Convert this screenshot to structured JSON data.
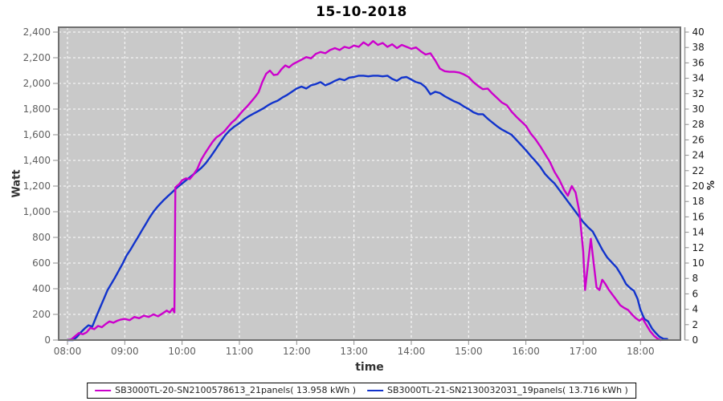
{
  "chart_data": {
    "type": "line",
    "title": "15-10-2018",
    "x_axis": {
      "label": "time",
      "ticks": [
        "08:00",
        "09:00",
        "10:00",
        "11:00",
        "12:00",
        "13:00",
        "14:00",
        "15:00",
        "16:00",
        "17:00",
        "18:00"
      ]
    },
    "y_axis_left": {
      "label": "Watt",
      "range": [
        0,
        2400
      ],
      "ticks": [
        [
          0,
          "0"
        ],
        [
          200,
          "200"
        ],
        [
          400,
          "400"
        ],
        [
          600,
          "600"
        ],
        [
          800,
          "800"
        ],
        [
          1000,
          "1,000"
        ],
        [
          1200,
          "1,200"
        ],
        [
          1400,
          "1,400"
        ],
        [
          1600,
          "1,600"
        ],
        [
          1800,
          "1,800"
        ],
        [
          2000,
          "2,000"
        ],
        [
          2200,
          "2,200"
        ],
        [
          2400,
          "2,400"
        ]
      ]
    },
    "y_axis_right": {
      "label": "%",
      "range": [
        0,
        40
      ],
      "ticks": [
        0,
        2,
        4,
        6,
        8,
        10,
        12,
        14,
        16,
        18,
        20,
        22,
        24,
        26,
        28,
        30,
        32,
        34,
        36,
        38,
        40
      ]
    },
    "plot": {
      "bg": "#C9C9C9",
      "grid_color": "#FFFFFF",
      "grid_style": "dashed",
      "border_color": "#707070"
    },
    "legend_position": "bottom",
    "series": [
      {
        "name": "SB3000TL-20-SN2100578613_21panels( 13.958 kWh )",
        "total_kwh": "13.958",
        "color": "#CC00CC",
        "points": [
          [
            "08:00",
            0
          ],
          [
            "08:04",
            5
          ],
          [
            "08:08",
            30
          ],
          [
            "08:12",
            55
          ],
          [
            "08:16",
            45
          ],
          [
            "08:20",
            60
          ],
          [
            "08:24",
            95
          ],
          [
            "08:28",
            85
          ],
          [
            "08:32",
            110
          ],
          [
            "08:36",
            100
          ],
          [
            "08:40",
            125
          ],
          [
            "08:44",
            145
          ],
          [
            "08:48",
            135
          ],
          [
            "08:52",
            150
          ],
          [
            "08:56",
            160
          ],
          [
            "09:00",
            165
          ],
          [
            "09:05",
            155
          ],
          [
            "09:10",
            180
          ],
          [
            "09:15",
            170
          ],
          [
            "09:20",
            190
          ],
          [
            "09:25",
            180
          ],
          [
            "09:30",
            200
          ],
          [
            "09:35",
            185
          ],
          [
            "09:40",
            210
          ],
          [
            "09:44",
            230
          ],
          [
            "09:47",
            215
          ],
          [
            "09:50",
            245
          ],
          [
            "09:52",
            215
          ],
          [
            "09:53",
            1190
          ],
          [
            "09:57",
            1215
          ],
          [
            "10:00",
            1245
          ],
          [
            "10:04",
            1260
          ],
          [
            "10:08",
            1255
          ],
          [
            "10:12",
            1290
          ],
          [
            "10:16",
            1335
          ],
          [
            "10:20",
            1405
          ],
          [
            "10:24",
            1455
          ],
          [
            "10:28",
            1500
          ],
          [
            "10:32",
            1545
          ],
          [
            "10:36",
            1580
          ],
          [
            "10:40",
            1600
          ],
          [
            "10:44",
            1625
          ],
          [
            "10:48",
            1660
          ],
          [
            "10:52",
            1695
          ],
          [
            "10:56",
            1720
          ],
          [
            "11:00",
            1755
          ],
          [
            "11:04",
            1790
          ],
          [
            "11:08",
            1820
          ],
          [
            "11:12",
            1855
          ],
          [
            "11:16",
            1890
          ],
          [
            "11:20",
            1930
          ],
          [
            "11:24",
            2010
          ],
          [
            "11:28",
            2075
          ],
          [
            "11:32",
            2100
          ],
          [
            "11:36",
            2065
          ],
          [
            "11:40",
            2070
          ],
          [
            "11:44",
            2110
          ],
          [
            "11:48",
            2140
          ],
          [
            "11:52",
            2125
          ],
          [
            "11:56",
            2150
          ],
          [
            "12:00",
            2165
          ],
          [
            "12:05",
            2185
          ],
          [
            "12:10",
            2205
          ],
          [
            "12:15",
            2195
          ],
          [
            "12:20",
            2230
          ],
          [
            "12:25",
            2245
          ],
          [
            "12:30",
            2235
          ],
          [
            "12:35",
            2260
          ],
          [
            "12:40",
            2275
          ],
          [
            "12:45",
            2260
          ],
          [
            "12:50",
            2285
          ],
          [
            "12:55",
            2275
          ],
          [
            "13:00",
            2295
          ],
          [
            "13:05",
            2285
          ],
          [
            "13:10",
            2320
          ],
          [
            "13:15",
            2295
          ],
          [
            "13:20",
            2330
          ],
          [
            "13:25",
            2300
          ],
          [
            "13:30",
            2315
          ],
          [
            "13:35",
            2285
          ],
          [
            "13:40",
            2305
          ],
          [
            "13:45",
            2275
          ],
          [
            "13:50",
            2300
          ],
          [
            "13:55",
            2285
          ],
          [
            "14:00",
            2270
          ],
          [
            "14:05",
            2280
          ],
          [
            "14:10",
            2250
          ],
          [
            "14:15",
            2225
          ],
          [
            "14:20",
            2235
          ],
          [
            "14:25",
            2180
          ],
          [
            "14:30",
            2115
          ],
          [
            "14:35",
            2095
          ],
          [
            "14:40",
            2090
          ],
          [
            "14:45",
            2090
          ],
          [
            "14:50",
            2085
          ],
          [
            "14:55",
            2070
          ],
          [
            "15:00",
            2050
          ],
          [
            "15:05",
            2010
          ],
          [
            "15:10",
            1980
          ],
          [
            "15:15",
            1955
          ],
          [
            "15:20",
            1960
          ],
          [
            "15:25",
            1920
          ],
          [
            "15:30",
            1885
          ],
          [
            "15:35",
            1850
          ],
          [
            "15:40",
            1830
          ],
          [
            "15:45",
            1780
          ],
          [
            "15:50",
            1740
          ],
          [
            "15:55",
            1705
          ],
          [
            "16:00",
            1670
          ],
          [
            "16:05",
            1610
          ],
          [
            "16:10",
            1565
          ],
          [
            "16:15",
            1510
          ],
          [
            "16:20",
            1450
          ],
          [
            "16:25",
            1390
          ],
          [
            "16:30",
            1310
          ],
          [
            "16:35",
            1250
          ],
          [
            "16:40",
            1170
          ],
          [
            "16:44",
            1125
          ],
          [
            "16:48",
            1200
          ],
          [
            "16:52",
            1150
          ],
          [
            "16:56",
            1000
          ],
          [
            "17:00",
            690
          ],
          [
            "17:02",
            390
          ],
          [
            "17:05",
            590
          ],
          [
            "17:08",
            790
          ],
          [
            "17:11",
            600
          ],
          [
            "17:14",
            410
          ],
          [
            "17:17",
            390
          ],
          [
            "17:20",
            470
          ],
          [
            "17:23",
            440
          ],
          [
            "17:27",
            390
          ],
          [
            "17:31",
            350
          ],
          [
            "17:35",
            310
          ],
          [
            "17:39",
            270
          ],
          [
            "17:43",
            250
          ],
          [
            "17:47",
            235
          ],
          [
            "17:51",
            200
          ],
          [
            "17:55",
            170
          ],
          [
            "17:59",
            150
          ],
          [
            "18:02",
            170
          ],
          [
            "18:06",
            120
          ],
          [
            "18:10",
            70
          ],
          [
            "18:14",
            35
          ],
          [
            "18:18",
            10
          ],
          [
            "18:21",
            0
          ]
        ]
      },
      {
        "name": "SB3000TL-21-SN2130032031_19panels( 13.716 kWh )",
        "total_kwh": "13.716",
        "color": "#1133CC",
        "points": [
          [
            "08:00",
            0
          ],
          [
            "08:06",
            0
          ],
          [
            "08:10",
            25
          ],
          [
            "08:14",
            60
          ],
          [
            "08:18",
            90
          ],
          [
            "08:22",
            115
          ],
          [
            "08:26",
            105
          ],
          [
            "08:30",
            180
          ],
          [
            "08:34",
            250
          ],
          [
            "08:38",
            320
          ],
          [
            "08:42",
            390
          ],
          [
            "08:46",
            440
          ],
          [
            "08:50",
            490
          ],
          [
            "08:54",
            545
          ],
          [
            "08:58",
            600
          ],
          [
            "09:02",
            660
          ],
          [
            "09:06",
            705
          ],
          [
            "09:10",
            755
          ],
          [
            "09:14",
            805
          ],
          [
            "09:18",
            855
          ],
          [
            "09:22",
            905
          ],
          [
            "09:26",
            955
          ],
          [
            "09:30",
            1000
          ],
          [
            "09:35",
            1045
          ],
          [
            "09:40",
            1085
          ],
          [
            "09:45",
            1120
          ],
          [
            "09:50",
            1155
          ],
          [
            "09:55",
            1190
          ],
          [
            "10:00",
            1220
          ],
          [
            "10:05",
            1250
          ],
          [
            "10:10",
            1280
          ],
          [
            "10:15",
            1310
          ],
          [
            "10:20",
            1340
          ],
          [
            "10:25",
            1380
          ],
          [
            "10:30",
            1430
          ],
          [
            "10:35",
            1485
          ],
          [
            "10:40",
            1540
          ],
          [
            "10:45",
            1595
          ],
          [
            "10:50",
            1635
          ],
          [
            "10:55",
            1665
          ],
          [
            "11:00",
            1690
          ],
          [
            "11:05",
            1720
          ],
          [
            "11:10",
            1745
          ],
          [
            "11:15",
            1765
          ],
          [
            "11:20",
            1785
          ],
          [
            "11:25",
            1805
          ],
          [
            "11:30",
            1830
          ],
          [
            "11:35",
            1850
          ],
          [
            "11:40",
            1865
          ],
          [
            "11:45",
            1890
          ],
          [
            "11:50",
            1910
          ],
          [
            "11:55",
            1935
          ],
          [
            "12:00",
            1960
          ],
          [
            "12:05",
            1975
          ],
          [
            "12:10",
            1960
          ],
          [
            "12:15",
            1985
          ],
          [
            "12:20",
            1995
          ],
          [
            "12:25",
            2010
          ],
          [
            "12:30",
            1985
          ],
          [
            "12:35",
            2000
          ],
          [
            "12:40",
            2020
          ],
          [
            "12:45",
            2035
          ],
          [
            "12:50",
            2025
          ],
          [
            "12:55",
            2045
          ],
          [
            "13:00",
            2050
          ],
          [
            "13:05",
            2060
          ],
          [
            "13:10",
            2060
          ],
          [
            "13:15",
            2055
          ],
          [
            "13:20",
            2060
          ],
          [
            "13:25",
            2060
          ],
          [
            "13:30",
            2055
          ],
          [
            "13:35",
            2060
          ],
          [
            "13:40",
            2035
          ],
          [
            "13:45",
            2020
          ],
          [
            "13:50",
            2045
          ],
          [
            "13:55",
            2050
          ],
          [
            "14:00",
            2030
          ],
          [
            "14:05",
            2010
          ],
          [
            "14:10",
            2000
          ],
          [
            "14:15",
            1970
          ],
          [
            "14:20",
            1915
          ],
          [
            "14:25",
            1935
          ],
          [
            "14:30",
            1925
          ],
          [
            "14:35",
            1900
          ],
          [
            "14:40",
            1880
          ],
          [
            "14:45",
            1860
          ],
          [
            "14:50",
            1845
          ],
          [
            "14:55",
            1820
          ],
          [
            "15:00",
            1800
          ],
          [
            "15:05",
            1775
          ],
          [
            "15:10",
            1760
          ],
          [
            "15:15",
            1760
          ],
          [
            "15:20",
            1725
          ],
          [
            "15:25",
            1695
          ],
          [
            "15:30",
            1665
          ],
          [
            "15:35",
            1640
          ],
          [
            "15:40",
            1620
          ],
          [
            "15:45",
            1600
          ],
          [
            "15:50",
            1560
          ],
          [
            "15:55",
            1520
          ],
          [
            "16:00",
            1480
          ],
          [
            "16:05",
            1435
          ],
          [
            "16:10",
            1395
          ],
          [
            "16:15",
            1350
          ],
          [
            "16:20",
            1295
          ],
          [
            "16:25",
            1255
          ],
          [
            "16:30",
            1220
          ],
          [
            "16:35",
            1170
          ],
          [
            "16:40",
            1120
          ],
          [
            "16:45",
            1070
          ],
          [
            "16:50",
            1020
          ],
          [
            "16:55",
            970
          ],
          [
            "17:00",
            920
          ],
          [
            "17:05",
            880
          ],
          [
            "17:10",
            845
          ],
          [
            "17:15",
            775
          ],
          [
            "17:20",
            705
          ],
          [
            "17:25",
            645
          ],
          [
            "17:30",
            605
          ],
          [
            "17:35",
            565
          ],
          [
            "17:40",
            505
          ],
          [
            "17:45",
            435
          ],
          [
            "17:50",
            400
          ],
          [
            "17:53",
            385
          ],
          [
            "17:57",
            320
          ],
          [
            "18:00",
            235
          ],
          [
            "18:04",
            165
          ],
          [
            "18:08",
            145
          ],
          [
            "18:12",
            90
          ],
          [
            "18:16",
            55
          ],
          [
            "18:20",
            25
          ],
          [
            "18:24",
            10
          ],
          [
            "18:28",
            8
          ]
        ]
      }
    ]
  }
}
